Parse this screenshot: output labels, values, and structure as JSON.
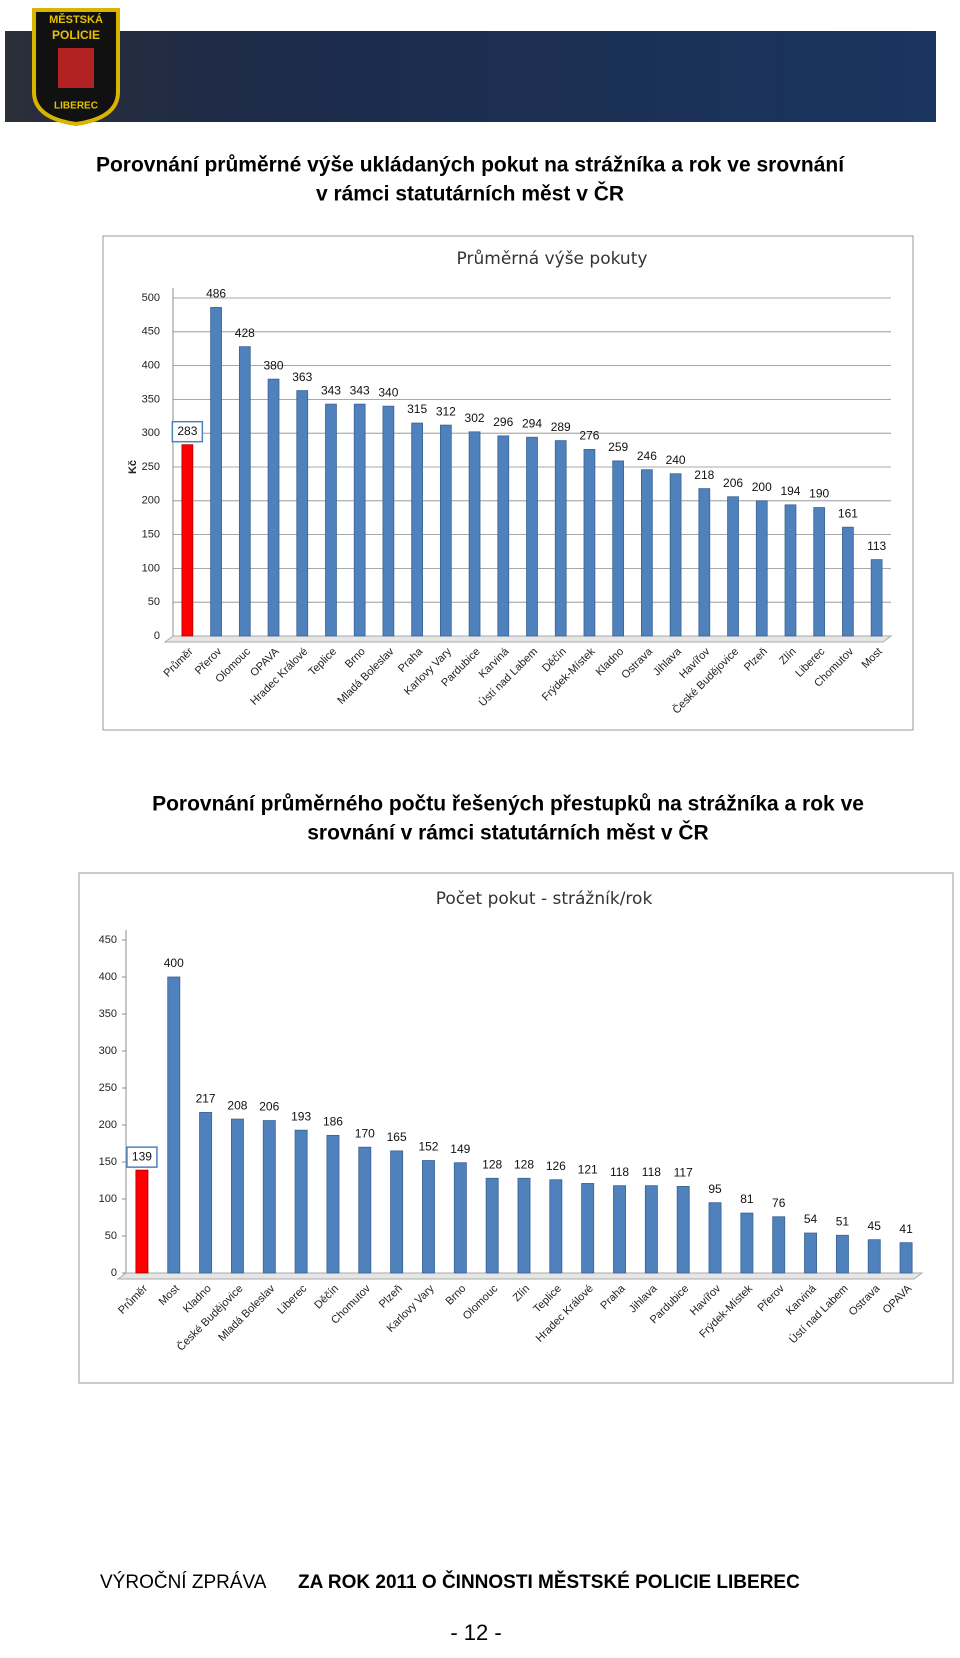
{
  "header": {
    "logo": [
      "MĚSTSKÁ",
      "POLICIE",
      "LIBEREC"
    ]
  },
  "headings": [
    [
      "Porovnání průměrné výše ukládaných pokut na strážníka a rok ve srovnání",
      "v rámci statutárních měst v ČR"
    ],
    [
      "Porovnání průměrného počtu řešených přestupků na strážníka a rok ve",
      "srovnání v rámci statutárních měst v ČR"
    ]
  ],
  "chart_data": [
    {
      "type": "bar",
      "title": "Průměrná výše pokuty",
      "y_label": "Kč",
      "categories": [
        "Průměr",
        "Přerov",
        "Olomouc",
        "OPAVA",
        "Hradec Králové",
        "Teplice",
        "Brno",
        "Mladá Boleslav",
        "Praha",
        "Karlovy Vary",
        "Pardubice",
        "Karviná",
        "Ústí nad Labem",
        "Děčín",
        "Frýdek-Místek",
        "Kladno",
        "Ostrava",
        "Jihlava",
        "Havířov",
        "České Budějovice",
        "Plzeň",
        "Zlín",
        "Liberec",
        "Chomutov",
        "Most"
      ],
      "values": [
        283,
        486,
        428,
        380,
        363,
        343,
        343,
        340,
        315,
        312,
        302,
        296,
        294,
        289,
        276,
        259,
        246,
        240,
        218,
        206,
        200,
        194,
        190,
        161,
        113
      ],
      "colors": [
        "#ff0000",
        "#4f81bd",
        "#4f81bd",
        "#4f81bd",
        "#4f81bd",
        "#4f81bd",
        "#4f81bd",
        "#4f81bd",
        "#4f81bd",
        "#4f81bd",
        "#4f81bd",
        "#4f81bd",
        "#4f81bd",
        "#4f81bd",
        "#4f81bd",
        "#4f81bd",
        "#4f81bd",
        "#4f81bd",
        "#4f81bd",
        "#4f81bd",
        "#4f81bd",
        "#4f81bd",
        "#4f81bd",
        "#4f81bd",
        "#4f81bd"
      ],
      "ylim": [
        0,
        500
      ],
      "yticks": [
        0,
        50,
        100,
        150,
        200,
        250,
        300,
        350,
        400,
        450,
        500
      ],
      "grid": true
    },
    {
      "type": "bar",
      "title": "Počet pokut - strážník/rok",
      "categories": [
        "Průměr",
        "Most",
        "Kladno",
        "České Budějovice",
        "Mladá Boleslav",
        "Liberec",
        "Děčín",
        "Chomutov",
        "Plzeň",
        "Karlovy Vary",
        "Brno",
        "Olomouc",
        "Zlín",
        "Teplice",
        "Hradec Králové",
        "Praha",
        "Jihlava",
        "Pardubice",
        "Havířov",
        "Frýdek-Místek",
        "Přerov",
        "Karviná",
        "Ústí nad Labem",
        "Ostrava",
        "OPAVA"
      ],
      "values": [
        139,
        400,
        217,
        208,
        206,
        193,
        186,
        170,
        165,
        152,
        149,
        128,
        128,
        126,
        121,
        118,
        118,
        117,
        95,
        81,
        76,
        54,
        51,
        45,
        41
      ],
      "colors": [
        "#ff0000",
        "#4f81bd",
        "#4f81bd",
        "#4f81bd",
        "#4f81bd",
        "#4f81bd",
        "#4f81bd",
        "#4f81bd",
        "#4f81bd",
        "#4f81bd",
        "#4f81bd",
        "#4f81bd",
        "#4f81bd",
        "#4f81bd",
        "#4f81bd",
        "#4f81bd",
        "#4f81bd",
        "#4f81bd",
        "#4f81bd",
        "#4f81bd",
        "#4f81bd",
        "#4f81bd",
        "#4f81bd",
        "#4f81bd",
        "#4f81bd"
      ],
      "ylim": [
        0,
        450
      ],
      "yticks": [
        0,
        50,
        100,
        150,
        200,
        250,
        300,
        350,
        400,
        450
      ],
      "grid": false
    }
  ],
  "footer": {
    "report": "VÝROČNÍ ZPRÁVA",
    "subject": "ZA ROK 2011 O ČINNOSTI MĚSTSKÉ POLICIE LIBEREC",
    "page": "- 12 -"
  }
}
